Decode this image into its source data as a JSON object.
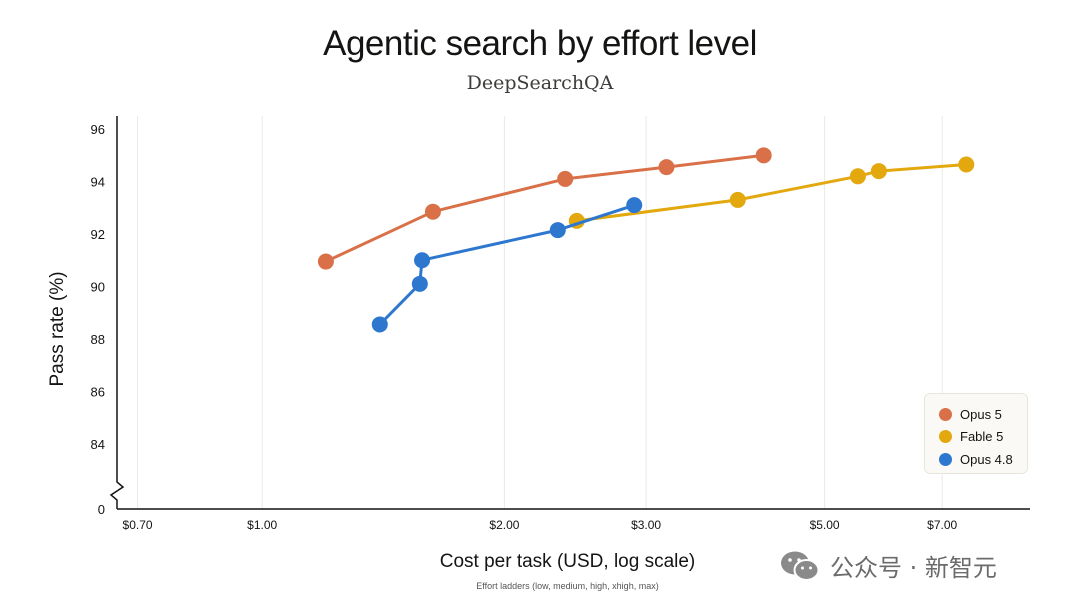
{
  "chart_data": {
    "type": "line",
    "title": "Agentic search by effort level",
    "subtitle": "DeepSearchQA",
    "xlabel": "Cost per task (USD, log scale)",
    "xnote": "Effort ladders (low, medium, high, xhigh, max)",
    "ylabel": "Pass rate (%)",
    "x_scale": "log",
    "xlim": [
      0.66,
      9.0
    ],
    "ylim": [
      83,
      96.5
    ],
    "x_ticks": [
      {
        "value": 0.7,
        "label": "$0.70"
      },
      {
        "value": 1.0,
        "label": "$1.00"
      },
      {
        "value": 2.0,
        "label": "$2.00"
      },
      {
        "value": 3.0,
        "label": "$3.00"
      },
      {
        "value": 5.0,
        "label": "$5.00"
      },
      {
        "value": 7.0,
        "label": "$7.00"
      }
    ],
    "y_ticks": [
      84,
      86,
      88,
      90,
      92,
      94,
      96
    ],
    "y_zero_label": "0",
    "y_axis_break": true,
    "grid": "vertical",
    "legend_position": "bottom-right",
    "series": [
      {
        "name": "Opus 5",
        "color": "#d97048",
        "points": [
          [
            1.2,
            90.95
          ],
          [
            1.63,
            92.85
          ],
          [
            2.38,
            94.1
          ],
          [
            3.18,
            94.55
          ],
          [
            4.2,
            95.0
          ]
        ]
      },
      {
        "name": "Fable 5",
        "color": "#e2a80e",
        "points": [
          [
            2.46,
            92.5
          ],
          [
            3.9,
            93.3
          ],
          [
            5.5,
            94.2
          ],
          [
            5.84,
            94.4
          ],
          [
            7.5,
            94.65
          ]
        ]
      },
      {
        "name": "Opus 4.8",
        "color": "#2d77cf",
        "points": [
          [
            1.4,
            88.55
          ],
          [
            1.57,
            90.1
          ],
          [
            1.58,
            91.0
          ],
          [
            2.33,
            92.15
          ],
          [
            2.9,
            93.1
          ]
        ]
      }
    ]
  },
  "watermark": {
    "icon": "wechat-icon",
    "text": "公众号 · 新智元"
  }
}
